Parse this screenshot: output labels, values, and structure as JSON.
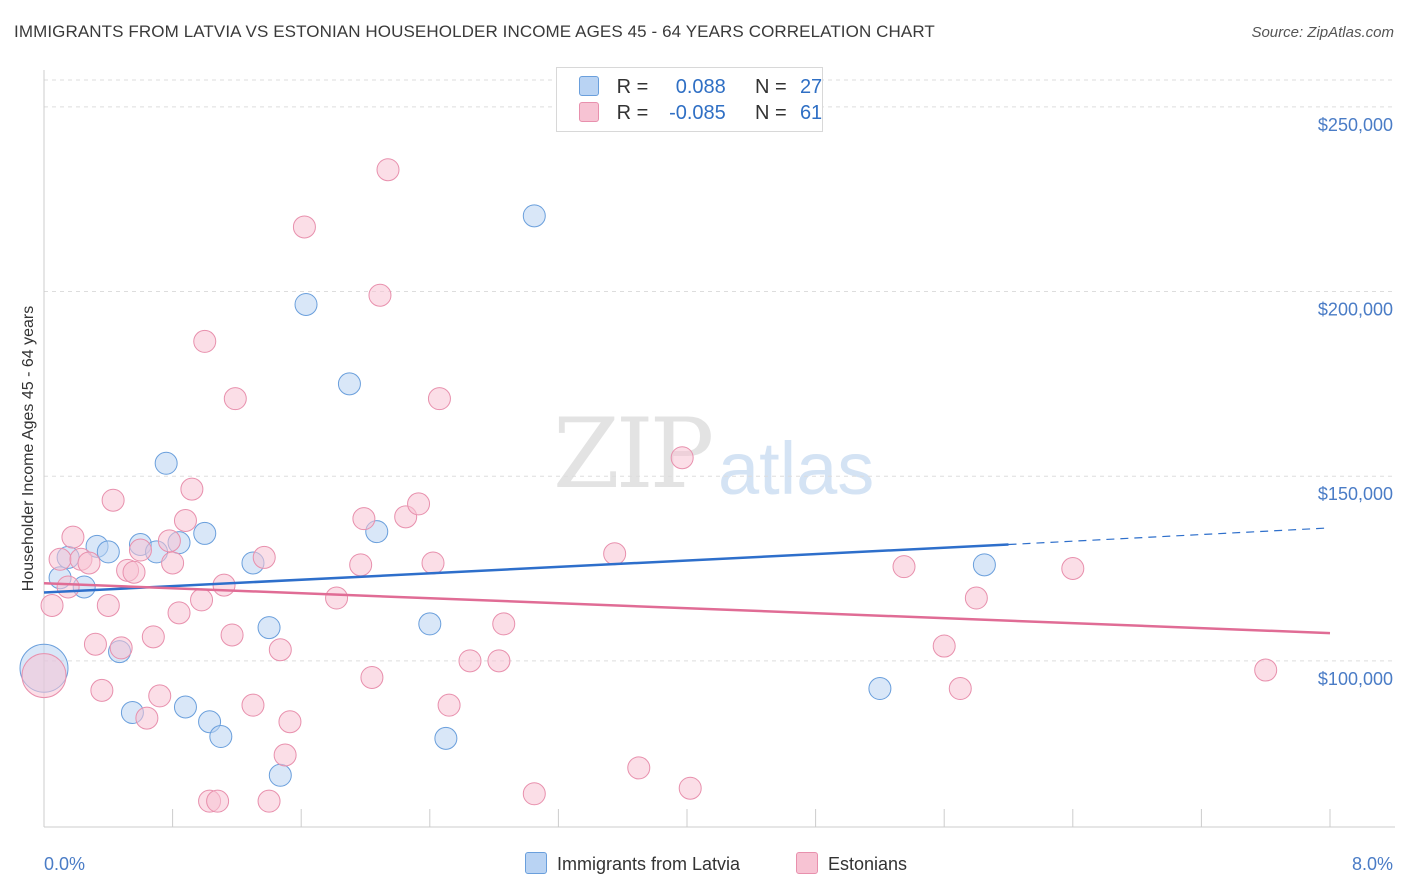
{
  "header": {
    "title": "IMMIGRANTS FROM LATVIA VS ESTONIAN HOUSEHOLDER INCOME AGES 45 - 64 YEARS CORRELATION CHART",
    "source": "Source: ZipAtlas.com"
  },
  "watermark": {
    "zip": "ZIP",
    "atlas": "atlas"
  },
  "legend": {
    "r_label": "R =",
    "n_label": "N =",
    "series1": {
      "r": "0.088",
      "n": "27"
    },
    "series2": {
      "r": "-0.085",
      "n": "61"
    }
  },
  "colors": {
    "latvia_fill": "#b9d3f3",
    "latvia_stroke": "#6a9fdc",
    "latvia_line": "#2e6fcb",
    "eston_fill": "#f7c3d3",
    "eston_stroke": "#e890ad",
    "eston_line": "#e06c95",
    "axis_text": "#4a7cc6",
    "grid": "#dddddd"
  },
  "chart_data": {
    "type": "scatter",
    "title": "IMMIGRANTS FROM LATVIA VS ESTONIAN HOUSEHOLDER INCOME AGES 45 - 64 YEARS CORRELATION CHART",
    "xlabel": "",
    "ylabel": "Householder Income Ages 45 - 64 years",
    "xlim": [
      0,
      8
    ],
    "ylim": [
      55000,
      260000
    ],
    "x_tick_labels": [
      "0.0%",
      "8.0%"
    ],
    "y_ticks": [
      100000,
      150000,
      200000,
      250000
    ],
    "y_tick_labels": [
      "$100,000",
      "$150,000",
      "$200,000",
      "$250,000"
    ],
    "grid": true,
    "legend_position": "top-center",
    "series": [
      {
        "name": "Immigrants from Latvia",
        "r": 0.088,
        "n": 27,
        "trend": {
          "x0": 0.0,
          "y0": 118500,
          "x1": 6.0,
          "y1": 131500,
          "dash_to_x": 8.0,
          "dash_to_y": 136000
        },
        "points": [
          [
            0.0,
            98000,
            24
          ],
          [
            0.1,
            122500,
            11
          ],
          [
            0.15,
            128000,
            11
          ],
          [
            0.25,
            120000,
            11
          ],
          [
            0.33,
            131000,
            11
          ],
          [
            0.4,
            129500,
            11
          ],
          [
            0.47,
            102500,
            11
          ],
          [
            0.55,
            86000,
            11
          ],
          [
            0.6,
            131500,
            11
          ],
          [
            0.7,
            129500,
            11
          ],
          [
            0.76,
            153500,
            11
          ],
          [
            0.84,
            132000,
            11
          ],
          [
            0.88,
            87500,
            11
          ],
          [
            1.0,
            134500,
            11
          ],
          [
            1.03,
            83500,
            11
          ],
          [
            1.1,
            79500,
            11
          ],
          [
            1.3,
            126500,
            11
          ],
          [
            1.4,
            109000,
            11
          ],
          [
            1.47,
            69000,
            11
          ],
          [
            1.63,
            196500,
            11
          ],
          [
            1.9,
            175000,
            11
          ],
          [
            2.07,
            135000,
            11
          ],
          [
            2.4,
            110000,
            11
          ],
          [
            2.5,
            79000,
            11
          ],
          [
            3.05,
            220500,
            11
          ],
          [
            5.2,
            92500,
            11
          ],
          [
            5.85,
            126000,
            11
          ]
        ]
      },
      {
        "name": "Estonians",
        "r": -0.085,
        "n": 61,
        "trend": {
          "x0": 0.0,
          "y0": 121000,
          "x1": 8.0,
          "y1": 107500
        },
        "points": [
          [
            0.0,
            96000,
            22
          ],
          [
            0.05,
            115000,
            11
          ],
          [
            0.1,
            127500,
            11
          ],
          [
            0.15,
            120000,
            11
          ],
          [
            0.18,
            133500,
            11
          ],
          [
            0.23,
            127500,
            11
          ],
          [
            0.28,
            126500,
            11
          ],
          [
            0.32,
            104500,
            11
          ],
          [
            0.36,
            92000,
            11
          ],
          [
            0.4,
            115000,
            11
          ],
          [
            0.43,
            143500,
            11
          ],
          [
            0.48,
            103500,
            11
          ],
          [
            0.52,
            124500,
            11
          ],
          [
            0.56,
            124000,
            11
          ],
          [
            0.6,
            130000,
            11
          ],
          [
            0.64,
            84500,
            11
          ],
          [
            0.68,
            106500,
            11
          ],
          [
            0.72,
            90500,
            11
          ],
          [
            0.78,
            132500,
            11
          ],
          [
            0.8,
            126500,
            11
          ],
          [
            0.84,
            113000,
            11
          ],
          [
            0.88,
            138000,
            11
          ],
          [
            0.92,
            146500,
            11
          ],
          [
            0.98,
            116500,
            11
          ],
          [
            1.0,
            186500,
            11
          ],
          [
            1.03,
            62000,
            11
          ],
          [
            1.08,
            62000,
            11
          ],
          [
            1.12,
            120500,
            11
          ],
          [
            1.17,
            107000,
            11
          ],
          [
            1.19,
            171000,
            11
          ],
          [
            1.3,
            88000,
            11
          ],
          [
            1.37,
            128000,
            11
          ],
          [
            1.4,
            62000,
            11
          ],
          [
            1.47,
            103000,
            11
          ],
          [
            1.5,
            74500,
            11
          ],
          [
            1.53,
            83500,
            11
          ],
          [
            1.62,
            217500,
            11
          ],
          [
            1.82,
            117000,
            11
          ],
          [
            1.97,
            126000,
            11
          ],
          [
            1.99,
            138500,
            11
          ],
          [
            2.04,
            95500,
            11
          ],
          [
            2.09,
            199000,
            11
          ],
          [
            2.14,
            233000,
            11
          ],
          [
            2.25,
            139000,
            11
          ],
          [
            2.33,
            142500,
            11
          ],
          [
            2.42,
            126500,
            11
          ],
          [
            2.46,
            171000,
            11
          ],
          [
            2.52,
            88000,
            11
          ],
          [
            2.65,
            100000,
            11
          ],
          [
            2.83,
            100000,
            11
          ],
          [
            2.86,
            110000,
            11
          ],
          [
            3.05,
            64000,
            11
          ],
          [
            3.55,
            129000,
            11
          ],
          [
            3.7,
            71000,
            11
          ],
          [
            3.97,
            155000,
            11
          ],
          [
            4.02,
            65500,
            11
          ],
          [
            5.35,
            125500,
            11
          ],
          [
            5.6,
            104000,
            11
          ],
          [
            5.7,
            92500,
            11
          ],
          [
            5.8,
            117000,
            11
          ],
          [
            6.4,
            125000,
            11
          ],
          [
            7.6,
            97500,
            11
          ]
        ]
      }
    ]
  },
  "bottom_legend": {
    "item1": "Immigrants from Latvia",
    "item2": "Estonians"
  }
}
